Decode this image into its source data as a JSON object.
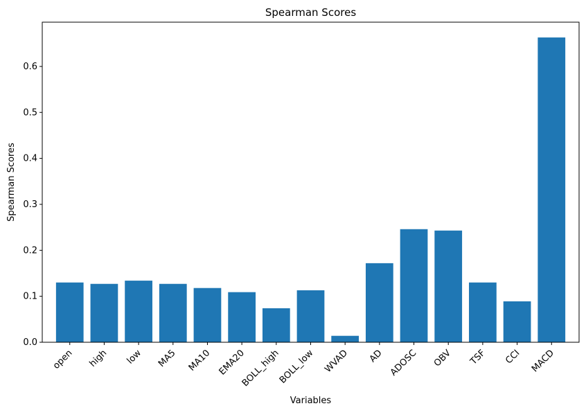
{
  "chart_data": {
    "type": "bar",
    "title": "Spearman Scores",
    "xlabel": "Variables",
    "ylabel": "Spearman Scores",
    "categories": [
      "open",
      "high",
      "low",
      "MA5",
      "MA10",
      "EMA20",
      "BOLL_high",
      "BOLL_low",
      "WVAD",
      "AD",
      "ADOSC",
      "OBV",
      "TSF",
      "CCI",
      "MACD"
    ],
    "values": [
      0.13,
      0.127,
      0.134,
      0.127,
      0.118,
      0.109,
      0.074,
      0.113,
      0.014,
      0.172,
      0.246,
      0.243,
      0.13,
      0.089,
      0.663
    ],
    "ylim": [
      0,
      0.6963
    ],
    "yticks": [
      0.0,
      0.1,
      0.2,
      0.3,
      0.4,
      0.5,
      0.6
    ],
    "ytick_labels": [
      "0.0",
      "0.1",
      "0.2",
      "0.3",
      "0.4",
      "0.5",
      "0.6"
    ],
    "grid": false,
    "legend": "none",
    "bar_color": "#1f77b4"
  }
}
